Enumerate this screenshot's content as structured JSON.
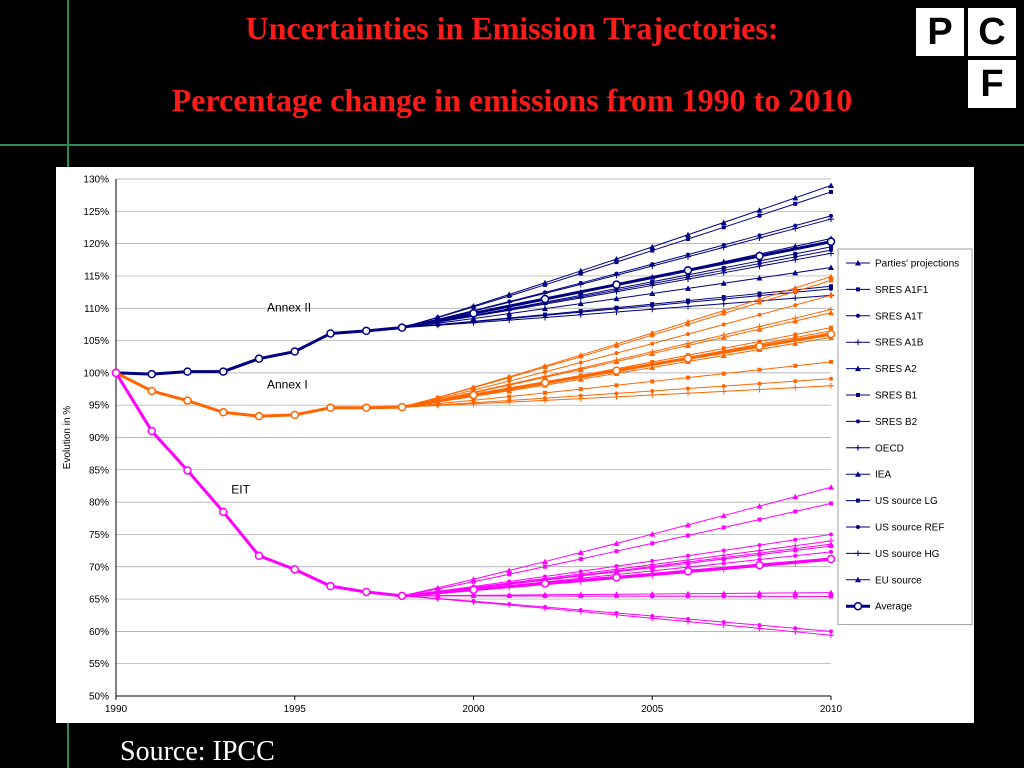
{
  "title_line1": "Uncertainties in Emission Trajectories:",
  "title_line2": "Percentage change in emissions from 1990 to 2010",
  "logo_letters": [
    "P",
    "C",
    "F"
  ],
  "source": "Source: IPCC",
  "colors": {
    "title": "#ff1a1a",
    "annex2": "#000080",
    "annex1": "#ff6600",
    "eit": "#ff00ff",
    "line_accent": "#2e8b57"
  },
  "chart_data": {
    "type": "line",
    "ylabel": "Evolution in %",
    "ylim": [
      50,
      130
    ],
    "yticks": [
      50,
      55,
      60,
      65,
      70,
      75,
      80,
      85,
      90,
      95,
      100,
      105,
      110,
      115,
      120,
      125,
      130
    ],
    "ytick_labels": [
      "50%",
      "55%",
      "60%",
      "65%",
      "70%",
      "75%",
      "80%",
      "85%",
      "90%",
      "95%",
      "100%",
      "105%",
      "110%",
      "115%",
      "120%",
      "125%",
      "130%"
    ],
    "xlim": [
      1990,
      2010
    ],
    "xticks": [
      1990,
      1995,
      2000,
      2005,
      2010
    ],
    "grid": true,
    "legend_position": "right",
    "legend": [
      {
        "label": "Parties' projections",
        "marker": "triangle"
      },
      {
        "label": "SRES A1F1",
        "marker": "x"
      },
      {
        "label": "SRES A1T",
        "marker": "square"
      },
      {
        "label": "SRES A1B",
        "marker": "dash"
      },
      {
        "label": "SRES A2",
        "marker": "plus"
      },
      {
        "label": "SRES B1",
        "marker": "dot"
      },
      {
        "label": "SRES B2",
        "marker": "dot"
      },
      {
        "label": "OECD",
        "marker": "triangle"
      },
      {
        "label": "IEA",
        "marker": "dot"
      },
      {
        "label": "US source LG",
        "marker": "square"
      },
      {
        "label": "US source REF",
        "marker": "diamond"
      },
      {
        "label": "US source HG",
        "marker": "triangle"
      },
      {
        "label": "EU source",
        "marker": "dash"
      },
      {
        "label": "Average",
        "marker": "circle",
        "bold": true
      }
    ],
    "groups": [
      {
        "name": "Annex II",
        "color": "#000080",
        "label_at": {
          "x": 1994,
          "y": 109.5
        },
        "history_x": [
          1990,
          1991,
          1992,
          1993,
          1994,
          1995,
          1996,
          1997,
          1998
        ],
        "history_y": [
          100,
          99.8,
          100.2,
          100.2,
          102.2,
          103.3,
          106.1,
          106.5,
          107
        ],
        "end_values_2010": [
          129,
          128,
          124.3,
          123.8,
          120.8,
          119.5,
          119,
          118.5,
          116.3,
          113.4,
          113,
          112
        ],
        "average_2010": 120.3
      },
      {
        "name": "Annex I",
        "color": "#ff6600",
        "label_at": {
          "x": 1994,
          "y": 97.6
        },
        "history_x": [
          1990,
          1991,
          1992,
          1993,
          1994,
          1995,
          1996,
          1997,
          1998
        ],
        "history_y": [
          100,
          97.2,
          95.7,
          93.9,
          93.3,
          93.5,
          94.6,
          94.6,
          94.7
        ],
        "end_values_2010": [
          114.9,
          114.3,
          112,
          109.8,
          109.3,
          107,
          106.5,
          106.2,
          105.5,
          101.7,
          99.1,
          98
        ],
        "average_2010": 106
      },
      {
        "name": "EIT",
        "color": "#ff00ff",
        "label_at": {
          "x": 1993,
          "y": 81.3
        },
        "history_x": [
          1990,
          1991,
          1992,
          1993,
          1994,
          1995,
          1996,
          1997,
          1998
        ],
        "history_y": [
          100,
          91,
          84.9,
          78.5,
          71.7,
          69.6,
          67,
          66.1,
          65.5
        ],
        "end_values_2010": [
          82.3,
          79.8,
          75,
          74,
          73.5,
          73.2,
          72.3,
          71,
          66,
          65.4,
          60,
          59.4
        ],
        "average_2010": 71.2
      }
    ]
  }
}
